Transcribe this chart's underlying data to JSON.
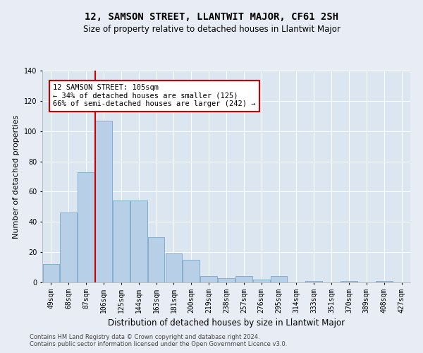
{
  "title": "12, SAMSON STREET, LLANTWIT MAJOR, CF61 2SH",
  "subtitle": "Size of property relative to detached houses in Llantwit Major",
  "xlabel": "Distribution of detached houses by size in Llantwit Major",
  "ylabel": "Number of detached properties",
  "footnote": "Contains HM Land Registry data © Crown copyright and database right 2024.\nContains public sector information licensed under the Open Government Licence v3.0.",
  "bar_labels": [
    "49sqm",
    "68sqm",
    "87sqm",
    "106sqm",
    "125sqm",
    "144sqm",
    "163sqm",
    "181sqm",
    "200sqm",
    "219sqm",
    "238sqm",
    "257sqm",
    "276sqm",
    "295sqm",
    "314sqm",
    "333sqm",
    "351sqm",
    "370sqm",
    "389sqm",
    "408sqm",
    "427sqm"
  ],
  "bar_values": [
    12,
    46,
    73,
    107,
    54,
    54,
    30,
    19,
    15,
    4,
    3,
    4,
    2,
    4,
    0,
    1,
    0,
    1,
    0,
    1,
    0
  ],
  "bar_color": "#b8cfe8",
  "bar_edge_color": "#6a9cc0",
  "property_line_x": 2.5,
  "annotation_text": "12 SAMSON STREET: 105sqm\n← 34% of detached houses are smaller (125)\n66% of semi-detached houses are larger (242) →",
  "annotation_box_color": "#ffffff",
  "annotation_box_edge": "#cc0000",
  "property_line_color": "#cc0000",
  "ylim": [
    0,
    140
  ],
  "background_color": "#e8edf5",
  "plot_bg_color": "#dce6f0",
  "grid_color": "#ffffff",
  "title_fontsize": 10,
  "subtitle_fontsize": 8.5,
  "xlabel_fontsize": 8.5,
  "ylabel_fontsize": 8,
  "tick_fontsize": 7,
  "annotation_fontsize": 7.5
}
